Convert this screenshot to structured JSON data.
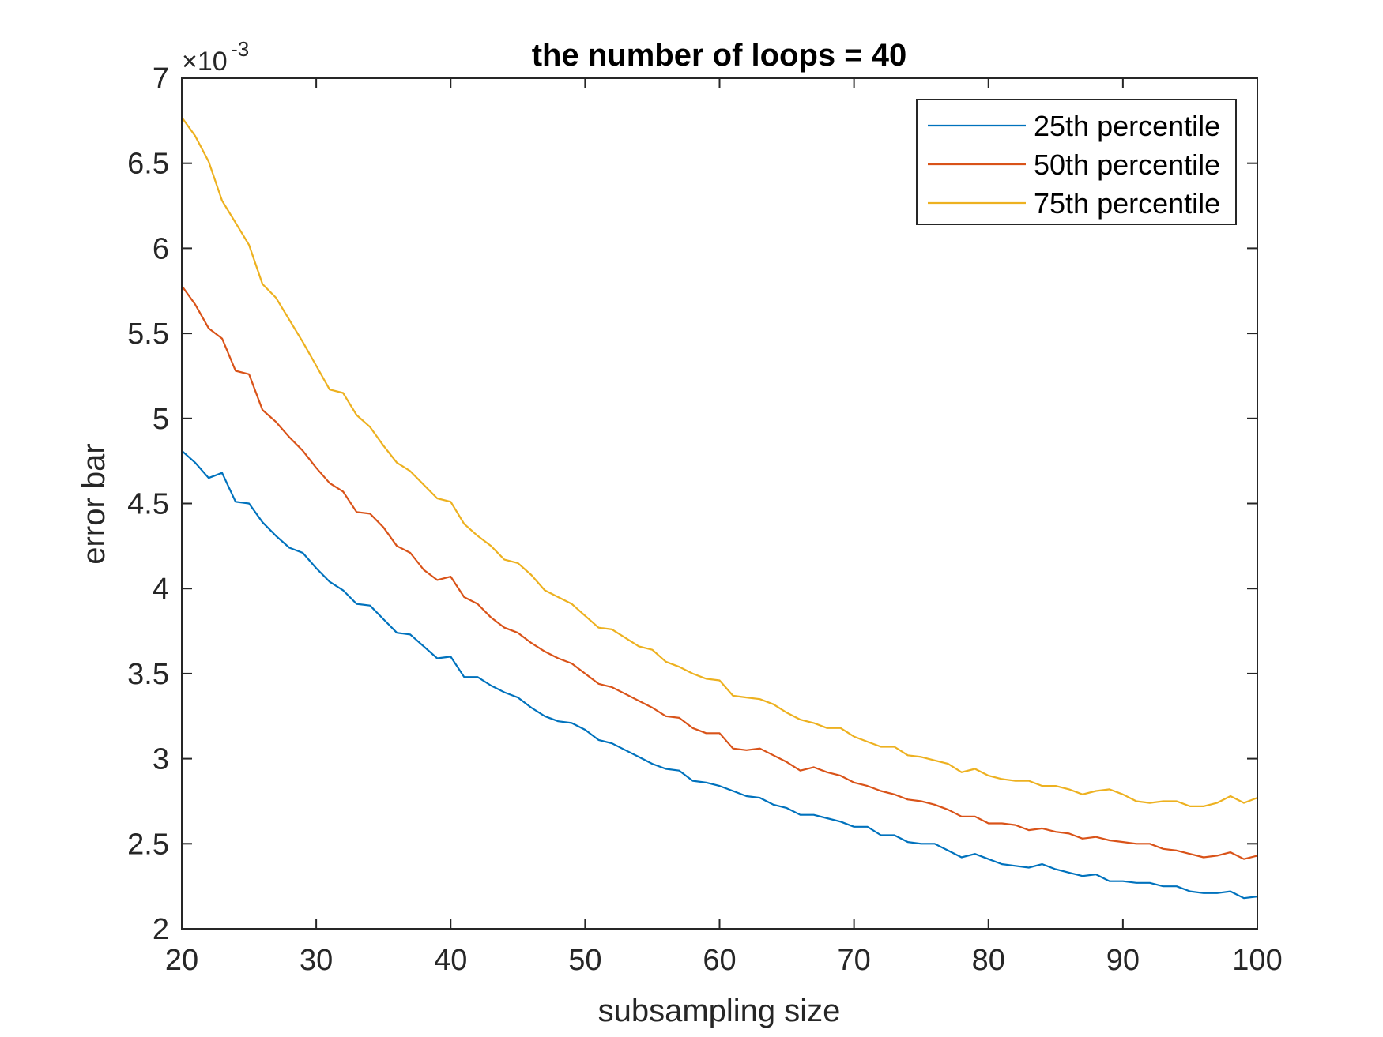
{
  "chart_data": {
    "type": "line",
    "title": "the number of loops = 40",
    "xlabel": "subsampling size",
    "ylabel": "error bar",
    "y_multiplier_base": "×10",
    "y_multiplier_exponent": "-3",
    "xlim": [
      20,
      100
    ],
    "ylim": [
      2,
      7
    ],
    "xticks": [
      "20",
      "30",
      "40",
      "50",
      "60",
      "70",
      "80",
      "90",
      "100"
    ],
    "yticks": [
      "2",
      "2.5",
      "3",
      "3.5",
      "4",
      "4.5",
      "5",
      "5.5",
      "6",
      "6.5",
      "7"
    ],
    "grid": false,
    "legend_position": "top-right",
    "x": [
      20,
      21,
      22,
      23,
      24,
      25,
      26,
      27,
      28,
      29,
      30,
      31,
      32,
      33,
      34,
      35,
      36,
      37,
      38,
      39,
      40,
      41,
      42,
      43,
      44,
      45,
      46,
      47,
      48,
      49,
      50,
      51,
      52,
      53,
      54,
      55,
      56,
      57,
      58,
      59,
      60,
      61,
      62,
      63,
      64,
      65,
      66,
      67,
      68,
      69,
      70,
      71,
      72,
      73,
      74,
      75,
      76,
      77,
      78,
      79,
      80,
      81,
      82,
      83,
      84,
      85,
      86,
      87,
      88,
      89,
      90,
      91,
      92,
      93,
      94,
      95,
      96,
      97,
      98,
      99,
      100
    ],
    "series": [
      {
        "name": "25th percentile",
        "color": "#0072BD",
        "values": [
          4.81,
          4.74,
          4.65,
          4.68,
          4.51,
          4.5,
          4.39,
          4.31,
          4.24,
          4.21,
          4.12,
          4.04,
          3.99,
          3.91,
          3.9,
          3.82,
          3.74,
          3.73,
          3.66,
          3.59,
          3.6,
          3.48,
          3.48,
          3.43,
          3.39,
          3.36,
          3.3,
          3.25,
          3.22,
          3.21,
          3.17,
          3.11,
          3.09,
          3.05,
          3.01,
          2.97,
          2.94,
          2.93,
          2.87,
          2.86,
          2.84,
          2.81,
          2.78,
          2.77,
          2.73,
          2.71,
          2.67,
          2.67,
          2.65,
          2.63,
          2.6,
          2.6,
          2.55,
          2.55,
          2.51,
          2.5,
          2.5,
          2.46,
          2.42,
          2.44,
          2.41,
          2.38,
          2.37,
          2.36,
          2.38,
          2.35,
          2.33,
          2.31,
          2.32,
          2.28,
          2.28,
          2.27,
          2.27,
          2.25,
          2.25,
          2.22,
          2.21,
          2.21,
          2.22,
          2.18,
          2.19
        ]
      },
      {
        "name": "50th percentile",
        "color": "#D95319",
        "values": [
          5.78,
          5.67,
          5.53,
          5.47,
          5.28,
          5.26,
          5.05,
          4.98,
          4.89,
          4.81,
          4.71,
          4.62,
          4.57,
          4.45,
          4.44,
          4.36,
          4.25,
          4.21,
          4.11,
          4.05,
          4.07,
          3.95,
          3.91,
          3.83,
          3.77,
          3.74,
          3.68,
          3.63,
          3.59,
          3.56,
          3.5,
          3.44,
          3.42,
          3.38,
          3.34,
          3.3,
          3.25,
          3.24,
          3.18,
          3.15,
          3.15,
          3.06,
          3.05,
          3.06,
          3.02,
          2.98,
          2.93,
          2.95,
          2.92,
          2.9,
          2.86,
          2.84,
          2.81,
          2.79,
          2.76,
          2.75,
          2.73,
          2.7,
          2.66,
          2.66,
          2.62,
          2.62,
          2.61,
          2.58,
          2.59,
          2.57,
          2.56,
          2.53,
          2.54,
          2.52,
          2.51,
          2.5,
          2.5,
          2.47,
          2.46,
          2.44,
          2.42,
          2.43,
          2.45,
          2.41,
          2.43
        ]
      },
      {
        "name": "75th percentile",
        "color": "#EDB120",
        "values": [
          6.77,
          6.66,
          6.51,
          6.28,
          6.15,
          6.02,
          5.79,
          5.71,
          5.58,
          5.45,
          5.31,
          5.17,
          5.15,
          5.02,
          4.95,
          4.84,
          4.74,
          4.69,
          4.61,
          4.53,
          4.51,
          4.38,
          4.31,
          4.25,
          4.17,
          4.15,
          4.08,
          3.99,
          3.95,
          3.91,
          3.84,
          3.77,
          3.76,
          3.71,
          3.66,
          3.64,
          3.57,
          3.54,
          3.5,
          3.47,
          3.46,
          3.37,
          3.36,
          3.35,
          3.32,
          3.27,
          3.23,
          3.21,
          3.18,
          3.18,
          3.13,
          3.1,
          3.07,
          3.07,
          3.02,
          3.01,
          2.99,
          2.97,
          2.92,
          2.94,
          2.9,
          2.88,
          2.87,
          2.87,
          2.84,
          2.84,
          2.82,
          2.79,
          2.81,
          2.82,
          2.79,
          2.75,
          2.74,
          2.75,
          2.75,
          2.72,
          2.72,
          2.74,
          2.78,
          2.74,
          2.77
        ]
      }
    ]
  }
}
